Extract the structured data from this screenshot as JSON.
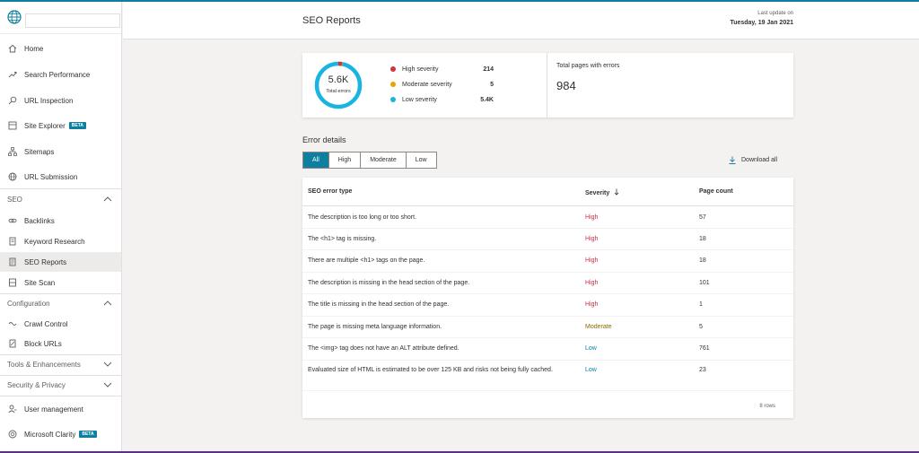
{
  "sidebar": {
    "site_value": "",
    "items": [
      {
        "label": "Home",
        "icon": "home-icon"
      },
      {
        "label": "Search Performance",
        "icon": "trend-icon"
      },
      {
        "label": "URL Inspection",
        "icon": "search-icon"
      },
      {
        "label": "Site Explorer",
        "icon": "tree-icon",
        "badge": "BETA"
      },
      {
        "label": "Sitemaps",
        "icon": "sitemap-icon"
      },
      {
        "label": "URL Submission",
        "icon": "globe-icon"
      }
    ],
    "sections": {
      "seo": "SEO",
      "configuration": "Configuration",
      "tools": "Tools & Enhancements",
      "security": "Security & Privacy"
    },
    "seo_items": [
      {
        "label": "Backlinks",
        "icon": "link-icon"
      },
      {
        "label": "Keyword Research",
        "icon": "document-icon"
      },
      {
        "label": "SEO Reports",
        "icon": "report-icon",
        "active": true
      },
      {
        "label": "Site Scan",
        "icon": "scan-icon"
      }
    ],
    "config_items": [
      {
        "label": "Crawl Control",
        "icon": "crawl-icon"
      },
      {
        "label": "Block URLs",
        "icon": "block-icon"
      }
    ],
    "bottom_items": [
      {
        "label": "User management",
        "icon": "users-icon"
      },
      {
        "label": "Microsoft Clarity",
        "icon": "clarity-icon",
        "badge": "BETA"
      }
    ]
  },
  "header": {
    "title": "SEO Reports",
    "last_update_label": "Last update on",
    "last_update_date": "Tuesday, 19 Jan 2021"
  },
  "summary": {
    "total_errors_value": "5.6K",
    "total_errors_label": "Total errors",
    "legend": [
      {
        "name": "High severity",
        "count": "214",
        "color": "#d13438"
      },
      {
        "name": "Moderate severity",
        "count": "5",
        "color": "#eaa300"
      },
      {
        "name": "Low severity",
        "count": "5.4K",
        "color": "#1ab4e0"
      }
    ],
    "pages_with_errors_label": "Total pages with errors",
    "pages_with_errors_value": "984"
  },
  "details": {
    "title": "Error details",
    "filters": [
      "All",
      "High",
      "Moderate",
      "Low"
    ],
    "active_filter": "All",
    "download_label": "Download all",
    "columns": [
      "SEO error type",
      "Severity",
      "Page count"
    ],
    "rows": [
      {
        "type": "The description is too long or too short.",
        "severity": "High",
        "count": "57"
      },
      {
        "type": "The <h1> tag is missing.",
        "severity": "High",
        "count": "18"
      },
      {
        "type": "There are multiple <h1> tags on the page.",
        "severity": "High",
        "count": "18"
      },
      {
        "type": "The description is missing in the head section of the page.",
        "severity": "High",
        "count": "101"
      },
      {
        "type": "The title is missing in the head section of the page.",
        "severity": "High",
        "count": "1"
      },
      {
        "type": "The page is missing meta language information.",
        "severity": "Moderate",
        "count": "5"
      },
      {
        "type": "The <img> tag does not have an ALT attribute defined.",
        "severity": "Low",
        "count": "761"
      },
      {
        "type": "Evaluated size of HTML is estimated to be over 125 KB and risks not being fully cached.",
        "severity": "Low",
        "count": "23"
      }
    ],
    "rows_label": "8 rows"
  }
}
